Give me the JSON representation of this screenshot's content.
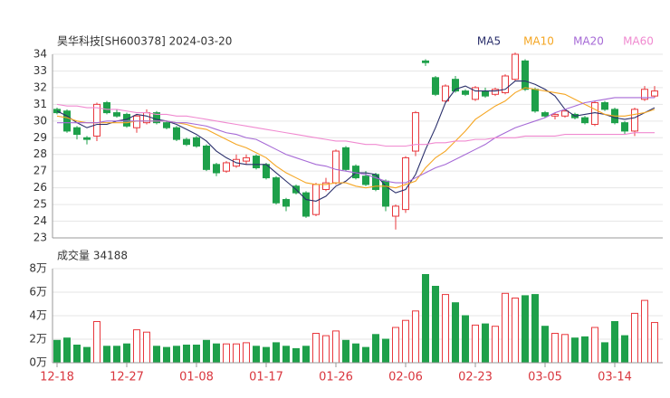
{
  "chart_data": [
    {
      "type": "candlestick",
      "title": "昊华科技[SH600378] 2024-03-20",
      "categories": [
        "12-18",
        null,
        null,
        null,
        null,
        null,
        null,
        "12-27",
        null,
        null,
        null,
        null,
        null,
        null,
        "01-08",
        null,
        null,
        null,
        null,
        null,
        null,
        "01-17",
        null,
        null,
        null,
        null,
        null,
        null,
        "01-26",
        null,
        null,
        null,
        null,
        null,
        null,
        "02-06",
        null,
        null,
        null,
        null,
        null,
        null,
        "02-23",
        null,
        null,
        null,
        null,
        null,
        null,
        "03-05",
        null,
        null,
        null,
        null,
        null,
        null,
        "03-14",
        null,
        null,
        null,
        null
      ],
      "open": [
        30.7,
        30.6,
        29.6,
        29.0,
        29.1,
        31.1,
        30.5,
        30.4,
        29.6,
        29.9,
        30.5,
        29.9,
        29.6,
        28.9,
        29.0,
        28.5,
        27.4,
        27.0,
        27.3,
        27.6,
        27.9,
        27.4,
        26.6,
        25.3,
        26.1,
        25.7,
        24.4,
        25.9,
        26.3,
        28.4,
        27.3,
        26.7,
        26.8,
        26.4,
        24.3,
        24.7,
        28.2,
        33.6,
        32.6,
        31.2,
        32.5,
        31.8,
        31.3,
        31.8,
        31.6,
        31.7,
        32.5,
        33.6,
        31.9,
        30.5,
        30.3,
        30.3,
        30.4,
        30.2,
        29.8,
        31.1,
        30.7,
        29.9,
        29.4,
        31.3,
        31.5
      ],
      "high": [
        30.8,
        30.7,
        29.7,
        29.1,
        31.1,
        31.2,
        30.7,
        30.5,
        30.4,
        30.7,
        30.6,
        30.0,
        29.7,
        29.0,
        29.1,
        28.6,
        27.5,
        27.6,
        28.0,
        28.0,
        28.0,
        27.5,
        26.7,
        25.4,
        26.2,
        25.8,
        26.3,
        26.6,
        28.3,
        28.5,
        27.4,
        27.0,
        26.9,
        26.5,
        25.0,
        27.9,
        30.6,
        33.7,
        32.7,
        32.2,
        32.7,
        31.9,
        32.1,
        32.0,
        32.0,
        32.8,
        34.1,
        33.7,
        32.0,
        30.6,
        30.5,
        30.7,
        30.5,
        30.3,
        31.2,
        31.2,
        30.8,
        30.0,
        30.8,
        32.1,
        32.1
      ],
      "low": [
        30.4,
        29.3,
        28.9,
        28.6,
        28.8,
        30.4,
        30.2,
        29.6,
        29.3,
        29.8,
        29.8,
        29.5,
        28.8,
        28.5,
        28.4,
        27.0,
        26.7,
        26.9,
        27.2,
        27.4,
        27.1,
        26.5,
        25.0,
        24.6,
        25.6,
        24.2,
        24.3,
        25.8,
        26.2,
        27.0,
        26.5,
        26.1,
        25.8,
        24.6,
        23.5,
        24.5,
        27.9,
        33.3,
        31.5,
        31.1,
        31.7,
        31.5,
        31.2,
        31.4,
        31.5,
        31.6,
        32.4,
        31.8,
        30.5,
        30.2,
        30.1,
        30.2,
        30.1,
        29.8,
        29.7,
        30.6,
        29.8,
        29.2,
        29.1,
        31.2,
        31.4
      ],
      "close": [
        30.5,
        29.4,
        29.2,
        28.9,
        31.0,
        30.5,
        30.3,
        29.7,
        30.3,
        30.5,
        29.9,
        29.6,
        28.9,
        28.6,
        28.5,
        27.1,
        26.9,
        27.5,
        27.7,
        27.8,
        27.2,
        26.6,
        25.1,
        24.9,
        25.7,
        24.3,
        26.2,
        26.3,
        28.2,
        27.1,
        26.6,
        26.2,
        25.9,
        24.9,
        24.9,
        27.8,
        30.5,
        33.5,
        31.6,
        32.1,
        31.8,
        31.6,
        32.0,
        31.5,
        31.9,
        32.7,
        34.0,
        31.9,
        30.6,
        30.3,
        30.4,
        30.6,
        30.2,
        29.9,
        31.1,
        30.7,
        29.9,
        29.4,
        30.7,
        31.9,
        31.8
      ],
      "up_color": "#e8383d",
      "down_color": "#1ea04a",
      "series": [
        {
          "name": "MA5",
          "color": "#2a2f6b",
          "values": [
            30.6,
            30.3,
            29.9,
            29.6,
            29.8,
            29.8,
            30.0,
            30.1,
            30.4,
            30.3,
            30.1,
            30.0,
            29.8,
            29.5,
            29.2,
            28.8,
            28.2,
            27.8,
            27.5,
            27.4,
            27.4,
            27.4,
            26.9,
            26.4,
            25.9,
            25.3,
            25.2,
            25.5,
            26.1,
            26.4,
            26.9,
            26.9,
            26.8,
            26.1,
            25.7,
            25.9,
            26.8,
            28.3,
            29.6,
            31.1,
            31.9,
            32.1,
            31.8,
            31.8,
            31.8,
            31.9,
            32.4,
            32.4,
            32.2,
            31.9,
            31.5,
            30.7,
            30.3,
            30.4,
            30.5,
            30.4,
            30.2,
            30.1,
            30.2,
            30.5,
            30.8
          ]
        },
        {
          "name": "MA10",
          "color": "#f5a623",
          "values": [
            30.3,
            30.2,
            30.0,
            29.9,
            29.9,
            29.9,
            29.9,
            29.9,
            30.0,
            30.0,
            30.0,
            30.0,
            29.9,
            29.8,
            29.6,
            29.5,
            29.2,
            28.9,
            28.6,
            28.4,
            28.1,
            27.8,
            27.3,
            26.9,
            26.6,
            26.3,
            26.2,
            26.2,
            26.3,
            26.3,
            26.1,
            26.0,
            26.1,
            26.1,
            26.0,
            26.2,
            26.4,
            27.2,
            27.8,
            28.2,
            28.8,
            29.4,
            30.1,
            30.5,
            30.9,
            31.2,
            31.7,
            32.0,
            31.9,
            31.8,
            31.7,
            31.6,
            31.3,
            31.0,
            30.7,
            30.4,
            30.3,
            30.3,
            30.4,
            30.5,
            30.7
          ]
        },
        {
          "name": "MA20",
          "color": "#a66ad6",
          "values": [
            29.9,
            29.9,
            29.9,
            29.9,
            29.9,
            30.0,
            30.0,
            30.0,
            30.0,
            30.0,
            30.0,
            30.0,
            29.9,
            29.9,
            29.8,
            29.7,
            29.5,
            29.3,
            29.2,
            29.0,
            28.9,
            28.6,
            28.3,
            28.0,
            27.8,
            27.6,
            27.4,
            27.3,
            27.1,
            27.0,
            26.9,
            26.8,
            26.6,
            26.4,
            26.3,
            26.3,
            26.6,
            26.9,
            27.2,
            27.4,
            27.7,
            28.0,
            28.3,
            28.6,
            29.0,
            29.3,
            29.6,
            29.8,
            30.0,
            30.2,
            30.5,
            30.7,
            30.9,
            31.1,
            31.2,
            31.3,
            31.4,
            31.4,
            31.4,
            31.4,
            31.4
          ]
        },
        {
          "name": "MA60",
          "color": "#f08ad0",
          "values": [
            31.0,
            30.9,
            30.9,
            30.8,
            30.8,
            30.7,
            30.7,
            30.6,
            30.5,
            30.5,
            30.4,
            30.4,
            30.3,
            30.3,
            30.2,
            30.1,
            30.0,
            29.9,
            29.8,
            29.7,
            29.6,
            29.5,
            29.4,
            29.3,
            29.2,
            29.1,
            29.0,
            28.9,
            28.8,
            28.8,
            28.7,
            28.6,
            28.6,
            28.5,
            28.5,
            28.5,
            28.6,
            28.6,
            28.7,
            28.7,
            28.8,
            28.8,
            28.9,
            28.9,
            29.0,
            29.0,
            29.0,
            29.1,
            29.1,
            29.1,
            29.1,
            29.2,
            29.2,
            29.2,
            29.2,
            29.2,
            29.2,
            29.2,
            29.3,
            29.3,
            29.3
          ]
        }
      ],
      "ylim": [
        23,
        34
      ],
      "yticks": [
        23,
        24,
        25,
        26,
        27,
        28,
        29,
        30,
        31,
        32,
        33,
        34
      ],
      "grid": true
    },
    {
      "type": "bar",
      "title": "成交量 34188",
      "values": [
        19000,
        21000,
        15000,
        13000,
        35000,
        14000,
        14000,
        16000,
        28000,
        26000,
        14000,
        13000,
        14000,
        15000,
        15000,
        19000,
        16000,
        16000,
        16000,
        17000,
        14000,
        13000,
        17000,
        14000,
        12000,
        14000,
        25000,
        23000,
        27000,
        19000,
        16000,
        13000,
        24000,
        20000,
        30000,
        36000,
        44000,
        75000,
        65000,
        58000,
        51000,
        40000,
        32000,
        33000,
        31000,
        59000,
        55000,
        57000,
        58000,
        31000,
        25000,
        24000,
        21000,
        22000,
        30000,
        17000,
        35000,
        23000,
        42000,
        53000,
        34188
      ],
      "ylim": [
        0,
        80000
      ],
      "yticks": [
        {
          "value": 0,
          "label": "0万"
        },
        {
          "value": 20000,
          "label": "2万"
        },
        {
          "value": 40000,
          "label": "4万"
        },
        {
          "value": 60000,
          "label": "6万"
        },
        {
          "value": 80000,
          "label": "8万"
        }
      ],
      "grid": true
    }
  ]
}
